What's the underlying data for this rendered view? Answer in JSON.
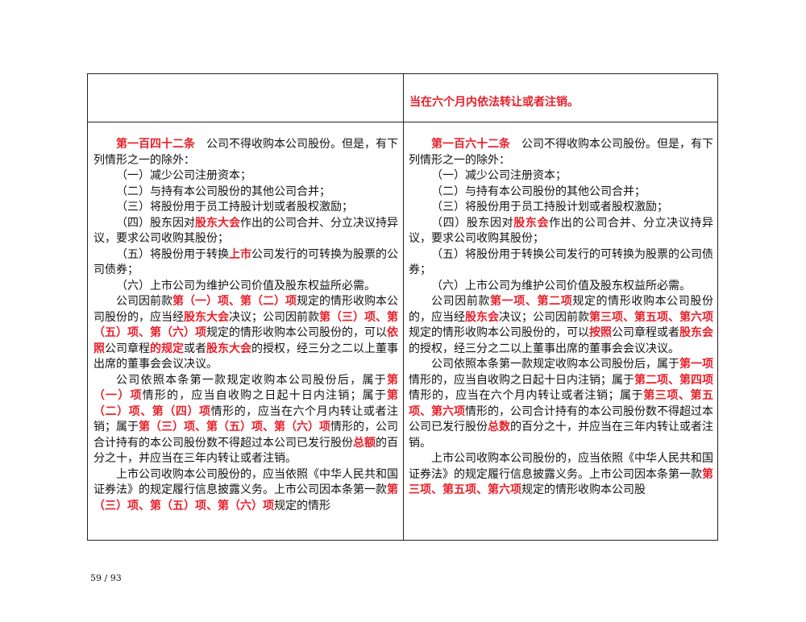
{
  "header_row": {
    "left": "",
    "right": "当在六个月内依法转让或者注销。"
  },
  "left": [
    [
      {
        "t": "第一百四十二条",
        "r": true
      },
      {
        "t": "　公司不得收购本公司股份。但是，有下列情形之一的除外："
      }
    ],
    [
      {
        "t": "（一）减少公司注册资本；"
      }
    ],
    [
      {
        "t": "（二）与持有本公司股份的其他公司合并；"
      }
    ],
    [
      {
        "t": "（三）将股份用于员工持股计划或者股权激励；"
      }
    ],
    [
      {
        "t": "（四）股东因对"
      },
      {
        "t": "股东大会",
        "r": true
      },
      {
        "t": "作出的公司合并、分立决议持异议，要求公司收购其股份；"
      }
    ],
    [
      {
        "t": "（五）将股份用于转换"
      },
      {
        "t": "上市",
        "r": true
      },
      {
        "t": "公司发行的可转换为股票的公司债券；"
      }
    ],
    [
      {
        "t": "（六）上市公司为维护公司价值及股东权益所必需。"
      }
    ],
    [
      {
        "t": "公司因前款"
      },
      {
        "t": "第（一）项、第（二）项",
        "r": true
      },
      {
        "t": "规定的情形收购本公司股份的，应当经"
      },
      {
        "t": "股东大会",
        "r": true
      },
      {
        "t": "决议；公司因前款"
      },
      {
        "t": "第（三）项、第（五）项、第（六）项",
        "r": true
      },
      {
        "t": "规定的情形收购本公司股份的，可以"
      },
      {
        "t": "依照",
        "r": true
      },
      {
        "t": "公司章程"
      },
      {
        "t": "的规定",
        "r": true
      },
      {
        "t": "或者"
      },
      {
        "t": "股东大会",
        "r": true
      },
      {
        "t": "的授权，经三分之二以上董事出席的董事会会议决议。"
      }
    ],
    [
      {
        "t": "公司依照本条第一款规定收购本公司股份后，属于"
      },
      {
        "t": "第（一）项",
        "r": true
      },
      {
        "t": "情形的，应当自收购之日起十日内注销；属于"
      },
      {
        "t": "第（二）项、第（四）项",
        "r": true
      },
      {
        "t": "情形的，应当在六个月内转让或者注销；属于"
      },
      {
        "t": "第（三）项、第（五）项、第（六）项",
        "r": true
      },
      {
        "t": "情形的，公司合计持有的本公司股份数不得超过本公司已发行股份"
      },
      {
        "t": "总额",
        "r": true
      },
      {
        "t": "的百分之十，并应当在三年内转让或者注销。"
      }
    ],
    [
      {
        "t": "上市公司收购本公司股份的，应当依照《中华人民共和国证券法》的规定履行信息披露义务。上市公司因本条第一款"
      },
      {
        "t": "第（三）项、第（五）项、第（六）项",
        "r": true
      },
      {
        "t": "规定的情形"
      }
    ]
  ],
  "right": [
    [
      {
        "t": "第一百六十二条",
        "r": true
      },
      {
        "t": "　公司不得收购本公司股份。但是，有下列情形之一的除外："
      }
    ],
    [
      {
        "t": "（一）减少公司注册资本；"
      }
    ],
    [
      {
        "t": "（二）与持有本公司股份的其他公司合并；"
      }
    ],
    [
      {
        "t": "（三）将股份用于员工持股计划或者股权激励；"
      }
    ],
    [
      {
        "t": "（四）股东因对"
      },
      {
        "t": "股东会",
        "r": true
      },
      {
        "t": "作出的公司合并、分立决议持异议，要求公司收购其股份；"
      }
    ],
    [
      {
        "t": "（五）将股份用于转换公司发行的可转换为股票的公司债券；"
      }
    ],
    [
      {
        "t": "（六）上市公司为维护公司价值及股东权益所必需。"
      }
    ],
    [
      {
        "t": "公司因前款"
      },
      {
        "t": "第一项、第二项",
        "r": true
      },
      {
        "t": "规定的情形收购本公司股份的，应当经"
      },
      {
        "t": "股东会",
        "r": true
      },
      {
        "t": "决议；公司因前款"
      },
      {
        "t": "第三项、第五项、第六项",
        "r": true
      },
      {
        "t": "规定的情形收购本公司股份的，可以"
      },
      {
        "t": "按照",
        "r": true
      },
      {
        "t": "公司章程或者"
      },
      {
        "t": "股东会",
        "r": true
      },
      {
        "t": "的授权，经三分之二以上董事出席的董事会会议决议。"
      }
    ],
    [
      {
        "t": "公司依照本条第一款规定收购本公司股份后，属于"
      },
      {
        "t": "第一项",
        "r": true
      },
      {
        "t": "情形的，应当自收购之日起十日内注销；属于"
      },
      {
        "t": "第二项、第四项",
        "r": true
      },
      {
        "t": "情形的，应当在六个月内转让或者注销；属于"
      },
      {
        "t": "第三项、第五项、第六项",
        "r": true
      },
      {
        "t": "情形的，公司合计持有的本公司股份数不得超过本公司已发行股份"
      },
      {
        "t": "总数",
        "r": true
      },
      {
        "t": "的百分之十，并应当在三年内转让或者注销。"
      }
    ],
    [
      {
        "t": "上市公司收购本公司股份的，应当依照《中华人民共和国证券法》的规定履行信息披露义务。上市公司因本条第一款"
      },
      {
        "t": "第三项、第五项、第六项",
        "r": true
      },
      {
        "t": "规定的情形收购本公司股"
      }
    ]
  ],
  "page_number": "59 / 93",
  "colors": {
    "highlight": "#e8202a",
    "text": "#111111"
  }
}
